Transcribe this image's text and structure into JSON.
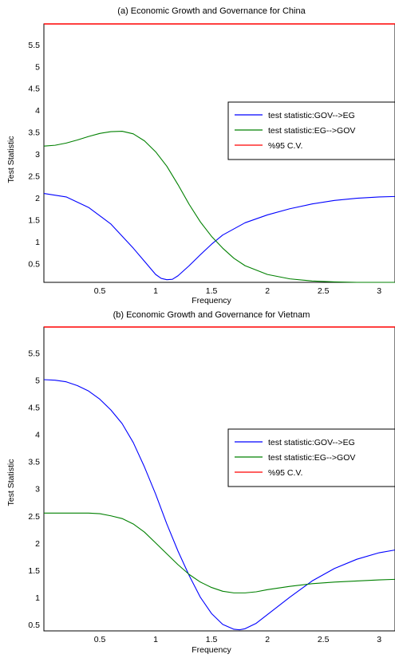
{
  "chart_data": [
    {
      "type": "line",
      "title": "(a) Economic Growth and Governance for China",
      "xlabel": "Frequency",
      "ylabel": "Test Statistic",
      "xlim": [
        0,
        3.1416
      ],
      "ylim": [
        0.07,
        5.97
      ],
      "xticks": [
        "0.5",
        "1",
        "1.5",
        "2",
        "2.5",
        "3"
      ],
      "yticks": [
        "0.5",
        "1",
        "1.5",
        "2",
        "2.5",
        "3",
        "3.5",
        "4",
        "4.5",
        "5",
        "5.5"
      ],
      "grid": false,
      "legend_position": "right-middle",
      "series": [
        {
          "name": "test statistic:GOV-->EG",
          "color": "#0000ff",
          "x": [
            0,
            0.2,
            0.4,
            0.6,
            0.8,
            0.9,
            1.0,
            1.05,
            1.1,
            1.15,
            1.2,
            1.3,
            1.4,
            1.5,
            1.6,
            1.8,
            2.0,
            2.2,
            2.4,
            2.6,
            2.8,
            3.0,
            3.14
          ],
          "y": [
            2.1,
            2.02,
            1.78,
            1.4,
            0.85,
            0.55,
            0.25,
            0.16,
            0.13,
            0.14,
            0.22,
            0.45,
            0.7,
            0.94,
            1.15,
            1.43,
            1.61,
            1.75,
            1.86,
            1.94,
            1.99,
            2.02,
            2.03
          ]
        },
        {
          "name": "test statistic:EG-->GOV",
          "color": "#008000",
          "x": [
            0,
            0.1,
            0.2,
            0.3,
            0.4,
            0.5,
            0.6,
            0.7,
            0.8,
            0.9,
            1.0,
            1.1,
            1.2,
            1.3,
            1.4,
            1.5,
            1.6,
            1.7,
            1.8,
            2.0,
            2.2,
            2.4,
            2.6,
            2.8,
            3.0,
            3.14
          ],
          "y": [
            3.18,
            3.2,
            3.25,
            3.32,
            3.4,
            3.47,
            3.51,
            3.52,
            3.46,
            3.3,
            3.05,
            2.72,
            2.3,
            1.85,
            1.45,
            1.12,
            0.85,
            0.62,
            0.45,
            0.25,
            0.15,
            0.1,
            0.08,
            0.07,
            0.07,
            0.07
          ]
        },
        {
          "name": "%95 C.V.",
          "color": "#ff0000",
          "x": [
            0,
            3.1416
          ],
          "y": [
            5.97,
            5.97
          ]
        }
      ]
    },
    {
      "type": "line",
      "title": "(b) Economic Growth and Governance for Vietnam",
      "xlabel": "Frequency",
      "ylabel": "Test Statistic",
      "xlim": [
        0,
        3.1416
      ],
      "ylim": [
        0.38,
        5.98
      ],
      "xticks": [
        "0.5",
        "1",
        "1.5",
        "2",
        "2.5",
        "3"
      ],
      "yticks": [
        "0.5",
        "1",
        "1.5",
        "2",
        "2.5",
        "3",
        "3.5",
        "4",
        "4.5",
        "5",
        "5.5"
      ],
      "grid": false,
      "legend_position": "right-middle",
      "series": [
        {
          "name": "test statistic:GOV-->EG",
          "color": "#0000ff",
          "x": [
            0,
            0.1,
            0.2,
            0.3,
            0.4,
            0.5,
            0.6,
            0.7,
            0.8,
            0.9,
            1.0,
            1.1,
            1.2,
            1.3,
            1.4,
            1.5,
            1.6,
            1.7,
            1.75,
            1.8,
            1.9,
            2.0,
            2.2,
            2.4,
            2.6,
            2.8,
            3.0,
            3.14
          ],
          "y": [
            5.01,
            5.0,
            4.97,
            4.9,
            4.8,
            4.65,
            4.45,
            4.2,
            3.85,
            3.4,
            2.9,
            2.35,
            1.85,
            1.4,
            1.0,
            0.7,
            0.5,
            0.41,
            0.4,
            0.42,
            0.52,
            0.68,
            1.0,
            1.3,
            1.53,
            1.7,
            1.82,
            1.87
          ]
        },
        {
          "name": "test statistic:EG-->GOV",
          "color": "#008000",
          "x": [
            0,
            0.2,
            0.4,
            0.5,
            0.6,
            0.7,
            0.8,
            0.9,
            1.0,
            1.1,
            1.2,
            1.3,
            1.4,
            1.5,
            1.6,
            1.7,
            1.8,
            1.9,
            2.0,
            2.2,
            2.4,
            2.6,
            2.8,
            3.0,
            3.14
          ],
          "y": [
            2.55,
            2.55,
            2.55,
            2.54,
            2.5,
            2.45,
            2.35,
            2.2,
            2.0,
            1.8,
            1.6,
            1.42,
            1.28,
            1.18,
            1.11,
            1.08,
            1.08,
            1.1,
            1.14,
            1.2,
            1.25,
            1.28,
            1.3,
            1.32,
            1.33
          ]
        },
        {
          "name": "%95 C.V.",
          "color": "#ff0000",
          "x": [
            0,
            3.1416
          ],
          "y": [
            5.98,
            5.98
          ]
        }
      ]
    }
  ]
}
